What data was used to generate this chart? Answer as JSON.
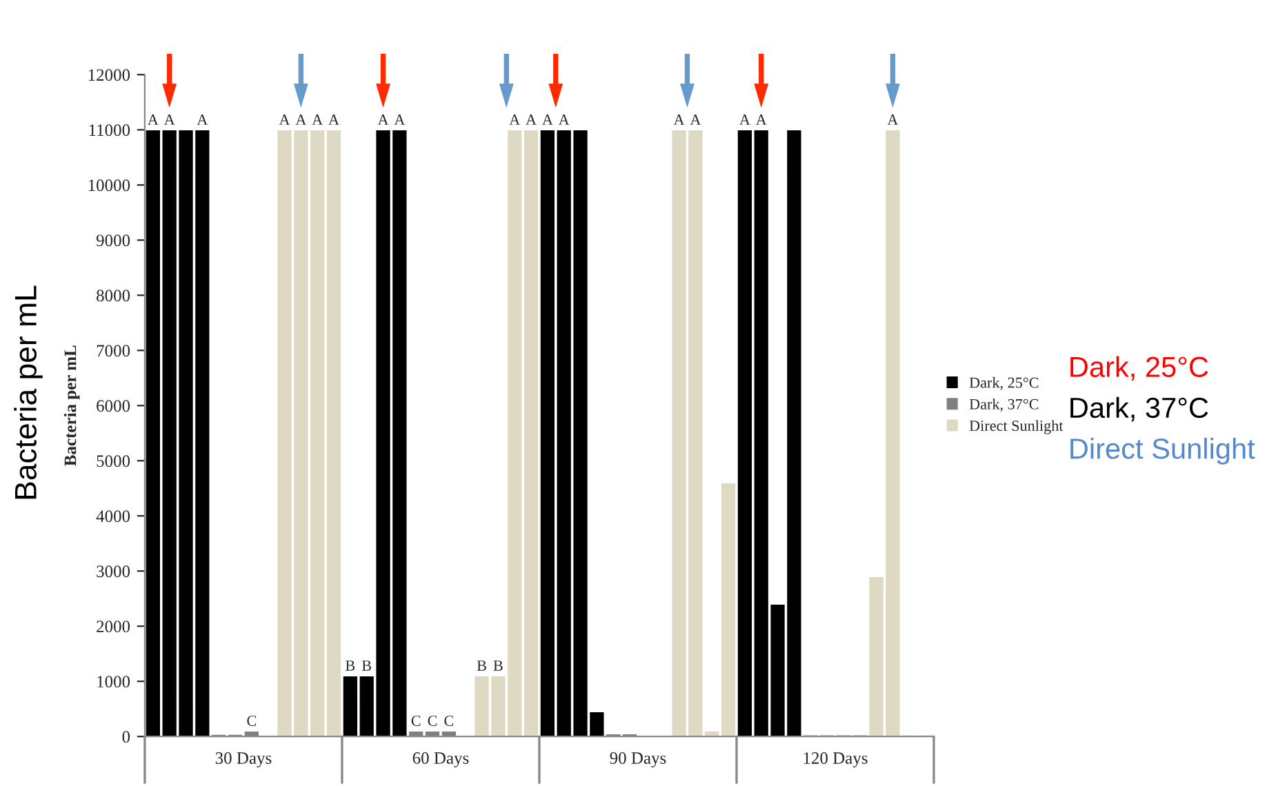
{
  "chart_data": {
    "type": "bar",
    "categories": [
      "30 Days",
      "60 Days",
      "90 Days",
      "120 Days"
    ],
    "ylabel": "Bacteria per mL",
    "ylim": [
      0,
      12000
    ],
    "yticks": [
      0,
      1000,
      2000,
      3000,
      4000,
      5000,
      6000,
      7000,
      8000,
      9000,
      10000,
      11000,
      12000
    ],
    "grid": false,
    "legend": "right",
    "series": [
      {
        "name": "Dark, 25°C",
        "color": "#000000",
        "values": [
          11000,
          1100,
          11000,
          11000
        ],
        "value_labels": [
          "A",
          "B",
          "A",
          "A"
        ]
      },
      {
        "color": "#000000",
        "values": [
          11000,
          1100,
          11000,
          11000
        ],
        "value_labels": [
          "A",
          "B",
          "A",
          "A"
        ]
      },
      {
        "color": "#000000",
        "values": [
          11000,
          11000,
          11000,
          2400
        ],
        "value_labels": [
          null,
          "A",
          null,
          null
        ]
      },
      {
        "color": "#000000",
        "values": [
          11000,
          11000,
          450,
          11000
        ],
        "value_labels": [
          "A",
          "A",
          null,
          null
        ]
      },
      {
        "name": "Dark, 37°C",
        "color": "#808080",
        "values": [
          40,
          100,
          50,
          30
        ],
        "value_labels": [
          null,
          "C",
          null,
          null
        ]
      },
      {
        "color": "#808080",
        "values": [
          40,
          100,
          50,
          30
        ],
        "value_labels": [
          null,
          "C",
          null,
          null
        ]
      },
      {
        "color": "#808080",
        "values": [
          100,
          100,
          20,
          30
        ],
        "value_labels": [
          "C",
          "C",
          null,
          null
        ]
      },
      {
        "color": "#808080",
        "values": [
          null,
          null,
          20,
          30
        ],
        "value_labels": [
          null,
          null,
          null,
          null
        ]
      },
      {
        "name": "Direct Sunlight",
        "color": "#ddd9c3",
        "values": [
          11000,
          1100,
          11000,
          2900
        ],
        "value_labels": [
          "A",
          "B",
          "A",
          null
        ]
      },
      {
        "color": "#ddd9c3",
        "values": [
          11000,
          1100,
          11000,
          11000
        ],
        "value_labels": [
          "A",
          "B",
          "A",
          "A"
        ]
      },
      {
        "color": "#ddd9c3",
        "values": [
          11000,
          11000,
          100,
          30
        ],
        "value_labels": [
          "A",
          "A",
          null,
          null
        ]
      },
      {
        "color": "#ddd9c3",
        "values": [
          11000,
          11000,
          4600,
          30
        ],
        "value_labels": [
          "A",
          "A",
          null,
          null
        ]
      }
    ],
    "annotations": [
      "Bacteria per mL",
      "Dark, 25°C",
      "Dark, 37°C",
      "Direct Sunlight"
    ]
  }
}
